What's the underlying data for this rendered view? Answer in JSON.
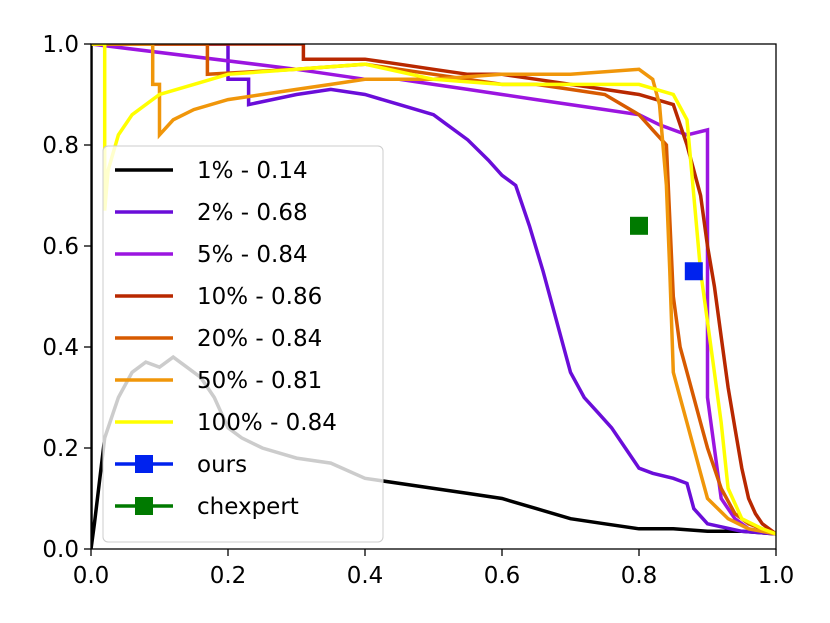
{
  "chart_data": {
    "type": "line",
    "title": "",
    "xlabel": "",
    "ylabel": "",
    "xlim": [
      0.0,
      1.0
    ],
    "ylim": [
      0.0,
      1.0
    ],
    "x_ticks": [
      "0.0",
      "0.2",
      "0.4",
      "0.6",
      "0.8",
      "1.0"
    ],
    "y_ticks": [
      "0.0",
      "0.2",
      "0.4",
      "0.6",
      "0.8",
      "1.0"
    ],
    "grid": false,
    "legend_position": "lower-left",
    "series": [
      {
        "name": "1% - 0.14",
        "color": "#000000",
        "x": [
          0.0,
          0.0,
          0.0,
          0.005,
          0.02,
          0.04,
          0.06,
          0.08,
          0.1,
          0.12,
          0.14,
          0.16,
          0.18,
          0.2,
          0.22,
          0.25,
          0.3,
          0.35,
          0.4,
          0.45,
          0.5,
          0.55,
          0.6,
          0.65,
          0.7,
          0.75,
          0.8,
          0.85,
          0.9,
          0.95,
          1.0
        ],
        "y": [
          1.0,
          0.0,
          0.0,
          0.05,
          0.22,
          0.3,
          0.35,
          0.37,
          0.36,
          0.38,
          0.36,
          0.34,
          0.3,
          0.24,
          0.22,
          0.2,
          0.18,
          0.17,
          0.14,
          0.13,
          0.12,
          0.11,
          0.1,
          0.08,
          0.06,
          0.05,
          0.04,
          0.04,
          0.035,
          0.035,
          0.03
        ]
      },
      {
        "name": "2% - 0.68",
        "color": "#6a0dd9",
        "x": [
          0.0,
          0.2,
          0.2,
          0.23,
          0.23,
          0.3,
          0.35,
          0.4,
          0.45,
          0.5,
          0.52,
          0.55,
          0.58,
          0.6,
          0.62,
          0.64,
          0.66,
          0.68,
          0.7,
          0.72,
          0.74,
          0.76,
          0.78,
          0.8,
          0.82,
          0.85,
          0.87,
          0.88,
          0.9,
          0.95,
          1.0
        ],
        "y": [
          1.0,
          1.0,
          0.93,
          0.93,
          0.88,
          0.9,
          0.91,
          0.9,
          0.88,
          0.86,
          0.84,
          0.81,
          0.77,
          0.74,
          0.72,
          0.64,
          0.55,
          0.45,
          0.35,
          0.3,
          0.27,
          0.24,
          0.2,
          0.16,
          0.15,
          0.14,
          0.13,
          0.08,
          0.05,
          0.035,
          0.03
        ]
      },
      {
        "name": "5% - 0.84",
        "color": "#9b15e0",
        "x": [
          0.0,
          0.3,
          0.35,
          0.4,
          0.45,
          0.5,
          0.55,
          0.6,
          0.65,
          0.7,
          0.75,
          0.8,
          0.83,
          0.85,
          0.87,
          0.9,
          0.9,
          0.92,
          0.94,
          0.96,
          1.0
        ],
        "y": [
          1.0,
          0.95,
          0.94,
          0.93,
          0.93,
          0.92,
          0.91,
          0.9,
          0.89,
          0.88,
          0.87,
          0.86,
          0.84,
          0.83,
          0.82,
          0.83,
          0.3,
          0.1,
          0.06,
          0.04,
          0.03
        ]
      },
      {
        "name": "10% - 0.86",
        "color": "#b82800",
        "x": [
          0.0,
          0.31,
          0.31,
          0.4,
          0.45,
          0.5,
          0.55,
          0.6,
          0.65,
          0.7,
          0.75,
          0.8,
          0.85,
          0.87,
          0.89,
          0.9,
          0.91,
          0.92,
          0.93,
          0.94,
          0.95,
          0.96,
          0.97,
          0.98,
          1.0
        ],
        "y": [
          1.0,
          1.0,
          0.97,
          0.97,
          0.96,
          0.95,
          0.94,
          0.94,
          0.93,
          0.92,
          0.91,
          0.9,
          0.88,
          0.8,
          0.7,
          0.6,
          0.52,
          0.42,
          0.32,
          0.24,
          0.16,
          0.1,
          0.07,
          0.05,
          0.03
        ]
      },
      {
        "name": "20% - 0.84",
        "color": "#d75a00",
        "x": [
          0.0,
          0.17,
          0.17,
          0.3,
          0.4,
          0.45,
          0.5,
          0.55,
          0.6,
          0.65,
          0.7,
          0.75,
          0.8,
          0.82,
          0.84,
          0.85,
          0.86,
          0.87,
          0.88,
          0.89,
          0.9,
          0.92,
          0.94,
          0.96,
          1.0
        ],
        "y": [
          1.0,
          1.0,
          0.94,
          0.95,
          0.96,
          0.95,
          0.94,
          0.93,
          0.92,
          0.92,
          0.91,
          0.9,
          0.86,
          0.83,
          0.8,
          0.5,
          0.4,
          0.35,
          0.3,
          0.25,
          0.2,
          0.12,
          0.07,
          0.05,
          0.03
        ]
      },
      {
        "name": "50% - 0.81",
        "color": "#f0960a",
        "x": [
          0.0,
          0.09,
          0.09,
          0.1,
          0.1,
          0.12,
          0.15,
          0.2,
          0.25,
          0.3,
          0.35,
          0.4,
          0.5,
          0.6,
          0.7,
          0.8,
          0.82,
          0.83,
          0.84,
          0.845,
          0.85,
          0.86,
          0.87,
          0.88,
          0.89,
          0.9,
          0.93,
          0.96,
          1.0
        ],
        "y": [
          1.0,
          1.0,
          0.92,
          0.92,
          0.82,
          0.85,
          0.87,
          0.89,
          0.9,
          0.91,
          0.92,
          0.93,
          0.93,
          0.94,
          0.94,
          0.95,
          0.93,
          0.88,
          0.72,
          0.55,
          0.35,
          0.3,
          0.25,
          0.2,
          0.15,
          0.1,
          0.06,
          0.04,
          0.03
        ]
      },
      {
        "name": "100% - 0.84",
        "color": "#ffff00",
        "x": [
          0.0,
          0.02,
          0.02,
          0.025,
          0.04,
          0.06,
          0.1,
          0.15,
          0.2,
          0.3,
          0.4,
          0.5,
          0.6,
          0.7,
          0.8,
          0.85,
          0.87,
          0.88,
          0.89,
          0.9,
          0.91,
          0.92,
          0.93,
          0.95,
          0.98,
          1.0
        ],
        "y": [
          1.0,
          1.0,
          0.67,
          0.75,
          0.82,
          0.86,
          0.9,
          0.92,
          0.94,
          0.95,
          0.96,
          0.93,
          0.92,
          0.92,
          0.92,
          0.9,
          0.85,
          0.7,
          0.55,
          0.45,
          0.35,
          0.25,
          0.12,
          0.06,
          0.04,
          0.03
        ]
      }
    ],
    "markers": [
      {
        "name": "ours",
        "color": "#0022ee",
        "x": 0.88,
        "y": 0.55
      },
      {
        "name": "chexpert",
        "color": "#007a00",
        "x": 0.8,
        "y": 0.64
      }
    ]
  }
}
